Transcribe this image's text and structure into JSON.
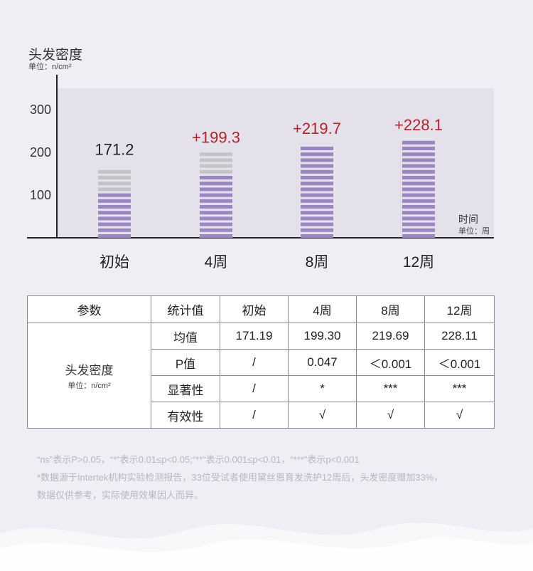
{
  "colors": {
    "background": "#efeef4",
    "purple_bar": "#9a86c0",
    "light_purple_bar": "#c3b4da",
    "gray_bar": "#c4c4c8",
    "increase_label": "#b3232a",
    "axis": "#222222"
  },
  "chart_data": {
    "type": "bar",
    "y_title": "头发密度",
    "y_unit": "单位：n/cm²",
    "x_title": "时间",
    "x_unit": "单位：周",
    "categories": [
      "初始",
      "4周",
      "8周",
      "12周"
    ],
    "values": [
      171.2,
      199.3,
      219.7,
      228.1
    ],
    "value_labels": [
      "171.2",
      "+199.3",
      "+219.7",
      "+228.1"
    ],
    "ytick_labels": [
      "100",
      "200",
      "300"
    ],
    "yticks": [
      100,
      200,
      300
    ],
    "ylim": [
      0,
      350
    ],
    "grid": false
  },
  "table": {
    "headers": [
      "参数",
      "统计值",
      "初始",
      "4周",
      "8周",
      "12周"
    ],
    "param_name": "头发密度",
    "param_unit": "单位：n/cm²",
    "rows": [
      {
        "label": "均值",
        "values": [
          "171.19",
          "199.30",
          "219.69",
          "228.11"
        ]
      },
      {
        "label": "P值",
        "values": [
          "/",
          "0.047",
          "＜0.001",
          "＜0.001"
        ]
      },
      {
        "label": "显著性",
        "values": [
          "/",
          "*",
          "***",
          "***"
        ]
      },
      {
        "label": "有效性",
        "values": [
          "/",
          "√",
          "√",
          "√"
        ]
      }
    ]
  },
  "notes": {
    "line1": "“ns”表示P>0.05，“*”表示0.01≤p<0.05;“**”表示0.001≤p<0.01，“***”表示p<0.001",
    "line2": "*数据源于Intertek机构实验检测报告，33位受试者使用黛丝恩育发洗护12周后，头发密度赠加33%，",
    "line3": "数据仅供参考，实际使用效果因人而异。"
  }
}
